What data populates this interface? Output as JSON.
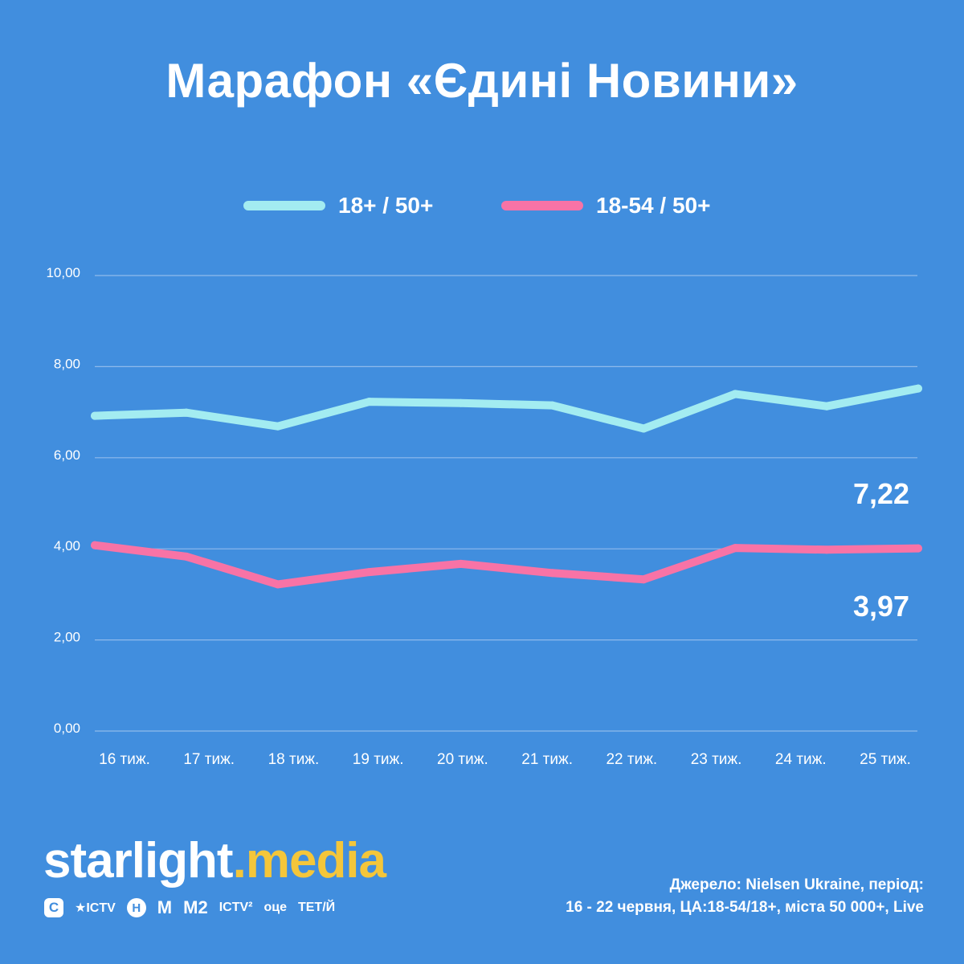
{
  "title": "Марафон «Єдині Новини»",
  "legend": [
    {
      "label": "18+ / 50+",
      "color": "#a3ecf1"
    },
    {
      "label": "18-54 / 50+",
      "color": "#f873a6"
    }
  ],
  "chart_data": {
    "type": "line",
    "categories": [
      "16 тиж.",
      "17 тиж.",
      "18 тиж.",
      "19 тиж.",
      "20 тиж.",
      "21 тиж.",
      "22 тиж.",
      "23 тиж.",
      "24 тиж.",
      "25 тиж."
    ],
    "series": [
      {
        "name": "18+ / 50+",
        "color": "#a3ecf1",
        "values": [
          6.92,
          6.99,
          6.69,
          7.23,
          7.2,
          7.15,
          6.64,
          7.4,
          7.13,
          7.52
        ]
      },
      {
        "name": "18-54 / 50+",
        "color": "#f873a6",
        "values": [
          4.08,
          3.83,
          3.22,
          3.49,
          3.67,
          3.47,
          3.33,
          4.02,
          3.98,
          4.01
        ]
      }
    ],
    "ylim": [
      0,
      10
    ],
    "yticks": [
      "0,00",
      "2,00",
      "4,00",
      "6,00",
      "8,00",
      "10,00"
    ],
    "ytick_values": [
      0,
      2,
      4,
      6,
      8,
      10
    ],
    "grid": true,
    "legend_position": "top-center",
    "annotations": [
      "7,22",
      "3,97"
    ]
  },
  "logo": {
    "brand": "starlight",
    "dot": ".",
    "suffix": "media"
  },
  "channels": [
    "С",
    "★ICTV",
    "Н",
    "М",
    "М2",
    "ICTV²",
    "оце",
    "ТЕТ/Й"
  ],
  "source": {
    "line1": "Джерело: Nielsen Ukraine, період:",
    "line2": "16 - 22 червня, ЦА:18-54/18+, міста 50 000+, Live"
  }
}
